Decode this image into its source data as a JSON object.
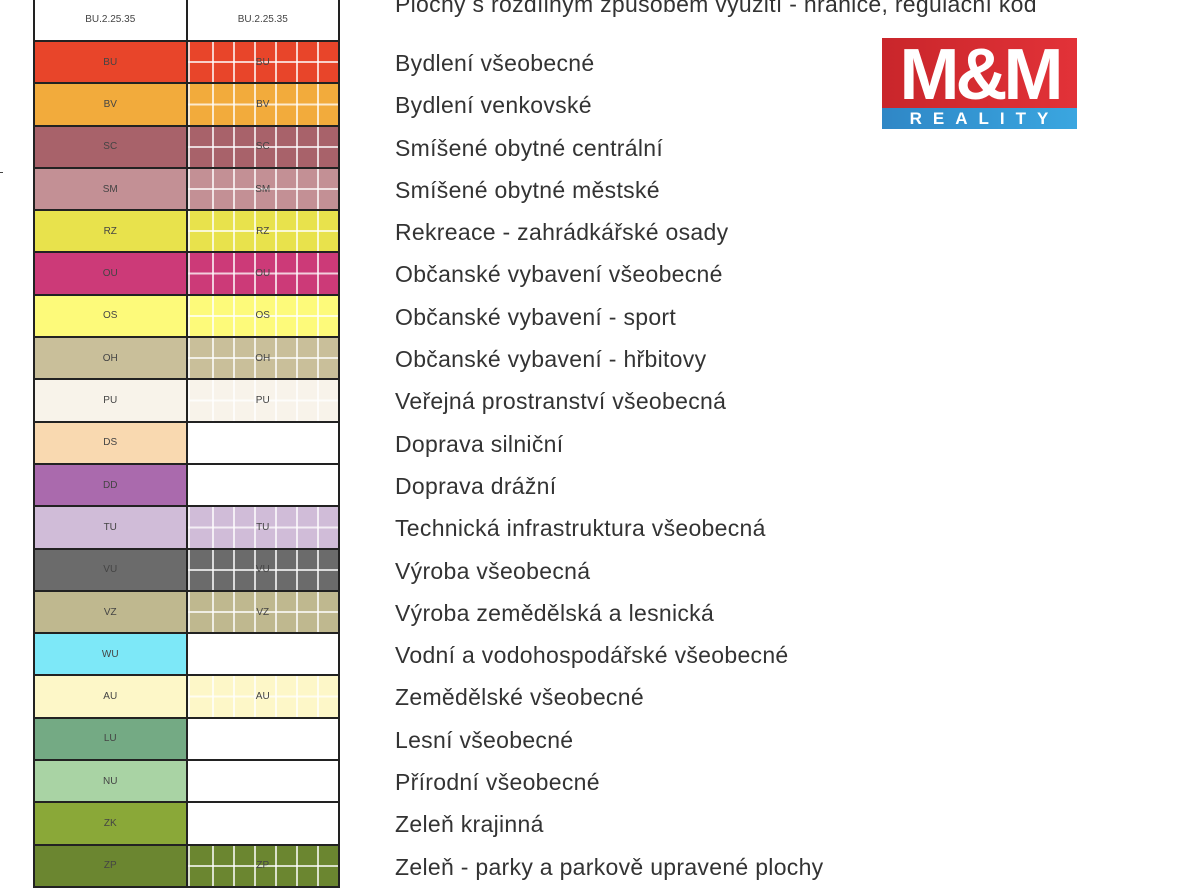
{
  "header": {
    "code_left": "BU.2.25.35",
    "code_right": "BU.2.25.35",
    "label": "Plochy s rozdílným způsobem využití - hranice, regulační kód"
  },
  "rows": [
    {
      "code": "BU",
      "label": "Bydlení všeobecné",
      "color": "#e8452a",
      "hatched": true
    },
    {
      "code": "BV",
      "label": "Bydlení venkovské",
      "color": "#f2ab3c",
      "hatched": true
    },
    {
      "code": "SC",
      "label": "Smíšené obytné centrální",
      "color": "#a8626a",
      "hatched": true
    },
    {
      "code": "SM",
      "label": "Smíšené obytné městské",
      "color": "#c39095",
      "hatched": true
    },
    {
      "code": "RZ",
      "label": "Rekreace - zahrádkářské osady",
      "color": "#e8e24c",
      "hatched": true
    },
    {
      "code": "OU",
      "label": "Občanské vybavení všeobecné",
      "color": "#cc3a78",
      "hatched": true
    },
    {
      "code": "OS",
      "label": "Občanské vybavení - sport",
      "color": "#fdfa7a",
      "hatched": true
    },
    {
      "code": "OH",
      "label": "Občanské vybavení - hřbitovy",
      "color": "#c9bf9a",
      "hatched": true
    },
    {
      "code": "PU",
      "label": "Veřejná prostranství všeobecná",
      "color": "#f8f3ea",
      "hatched": true
    },
    {
      "code": "DS",
      "label": "Doprava silniční",
      "color": "#f9d9b0",
      "hatched": false
    },
    {
      "code": "DD",
      "label": "Doprava drážní",
      "color": "#aa6aad",
      "hatched": false
    },
    {
      "code": "TU",
      "label": "Technická infrastruktura všeobecná",
      "color": "#d0bcd8",
      "hatched": true
    },
    {
      "code": "VU",
      "label": "Výroba všeobecná",
      "color": "#6b6b6b",
      "hatched": true
    },
    {
      "code": "VZ",
      "label": "Výroba zemědělská a lesnická",
      "color": "#bfb88f",
      "hatched": true
    },
    {
      "code": "WU",
      "label": "Vodní a vodohospodářské všeobecné",
      "color": "#7de8f8",
      "hatched": false
    },
    {
      "code": "AU",
      "label": "Zemědělské všeobecné",
      "color": "#fdf7c8",
      "hatched": true
    },
    {
      "code": "LU",
      "label": "Lesní všeobecné",
      "color": "#74aa84",
      "hatched": false
    },
    {
      "code": "NU",
      "label": "Přírodní všeobecné",
      "color": "#a9d3a4",
      "hatched": false
    },
    {
      "code": "ZK",
      "label": "Zeleň krajinná",
      "color": "#8aa838",
      "hatched": false
    },
    {
      "code": "ZP",
      "label": "Zeleň - parky a parkově upravené plochy",
      "color": "#6b8630",
      "hatched": true
    }
  ],
  "logo": {
    "top": "M&M",
    "bottom": "REALITY",
    "red": "#d92d33",
    "blue": "#3498d6"
  }
}
